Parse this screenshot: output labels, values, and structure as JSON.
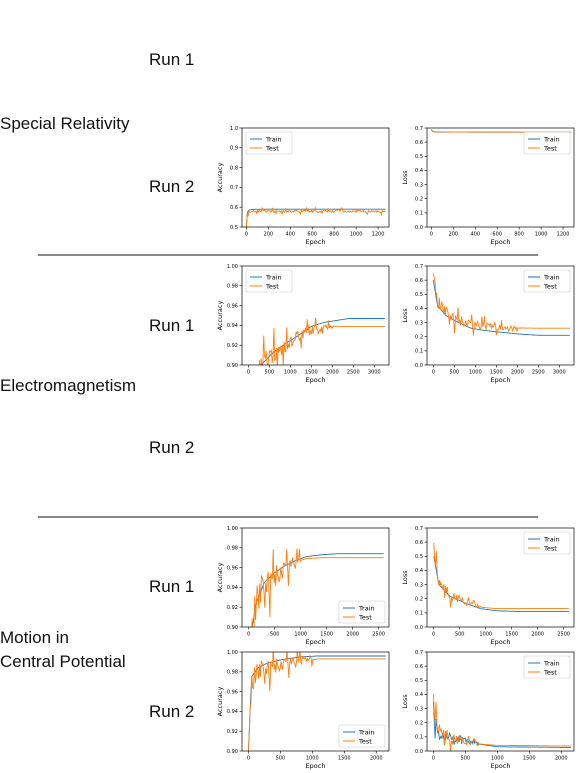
{
  "sections": [
    {
      "title_lines": [
        "Special Relativity"
      ],
      "runs": [
        "Run 1",
        "Run 2"
      ]
    },
    {
      "title_lines": [
        "Electromagnetism"
      ],
      "runs": [
        "Run 1",
        "Run 2"
      ]
    },
    {
      "title_lines": [
        "Motion in",
        "Central Potential"
      ],
      "runs": [
        "Run 1",
        "Run 2"
      ]
    }
  ],
  "colors": {
    "train": "#1f77b4",
    "test": "#ff7f0e",
    "separator": "#888888"
  },
  "chart_data": [
    {
      "id": "sr-run2-acc",
      "type": "line",
      "xlabel": "Epoch",
      "ylabel": "Accuracy",
      "xlim": [
        -40,
        1300
      ],
      "ylim": [
        0.5,
        1.0
      ],
      "xticks": [
        0,
        200,
        400,
        600,
        800,
        1000,
        1200
      ],
      "yticks": [
        0.5,
        0.6,
        0.7,
        0.8,
        0.9,
        1.0
      ],
      "legend": "top-left",
      "series": [
        {
          "name": "Train",
          "color": "#1f77b4",
          "x": [
            0,
            8,
            20,
            60,
            150,
            400,
            800,
            1270
          ],
          "y": [
            0.5,
            0.57,
            0.585,
            0.589,
            0.59,
            0.59,
            0.59,
            0.59
          ]
        },
        {
          "name": "Test",
          "color": "#ff7f0e",
          "noise": 0.006,
          "x": [
            0,
            8,
            20,
            60,
            150,
            400,
            800,
            1270
          ],
          "y": [
            0.5,
            0.56,
            0.575,
            0.58,
            0.58,
            0.58,
            0.58,
            0.58
          ]
        }
      ]
    },
    {
      "id": "sr-run2-loss",
      "type": "line",
      "xlabel": "Epoch",
      "ylabel": "Loss",
      "xlim": [
        -40,
        1300
      ],
      "ylim": [
        0.0,
        0.7
      ],
      "xticks": [
        0,
        200,
        400,
        600,
        800,
        1000,
        1200
      ],
      "yticks": [
        0.0,
        0.1,
        0.2,
        0.3,
        0.4,
        0.5,
        0.6,
        0.7
      ],
      "legend": "top-right",
      "series": [
        {
          "name": "Train",
          "color": "#1f77b4",
          "x": [
            0,
            10,
            50,
            200,
            600,
            1270
          ],
          "y": [
            0.69,
            0.675,
            0.672,
            0.671,
            0.67,
            0.67
          ]
        },
        {
          "name": "Test",
          "color": "#ff7f0e",
          "x": [
            0,
            10,
            50,
            200,
            600,
            1270
          ],
          "y": [
            0.69,
            0.676,
            0.673,
            0.672,
            0.671,
            0.671
          ]
        }
      ]
    },
    {
      "id": "em-run1-acc",
      "type": "line",
      "xlabel": "Epoch",
      "ylabel": "Accuracy",
      "xlim": [
        -150,
        3350
      ],
      "ylim": [
        0.9,
        1.0
      ],
      "xticks": [
        0,
        500,
        1000,
        1500,
        2000,
        2500,
        3000
      ],
      "yticks": [
        0.9,
        0.92,
        0.94,
        0.96,
        0.98,
        1.0
      ],
      "legend": "top-left",
      "series": [
        {
          "name": "Train",
          "color": "#1f77b4",
          "x": [
            0,
            300,
            600,
            900,
            1200,
            1500,
            1800,
            2100,
            2400,
            3250
          ],
          "y": [
            0.86,
            0.9,
            0.913,
            0.922,
            0.93,
            0.939,
            0.943,
            0.945,
            0.947,
            0.947
          ]
        },
        {
          "name": "Test",
          "color": "#ff7f0e",
          "noise": 0.012,
          "noiseUntil": 2000,
          "x": [
            0,
            300,
            600,
            900,
            1200,
            1500,
            1800,
            2000,
            3250
          ],
          "y": [
            0.86,
            0.9,
            0.912,
            0.92,
            0.93,
            0.935,
            0.938,
            0.939,
            0.939
          ]
        }
      ]
    },
    {
      "id": "em-run1-loss",
      "type": "line",
      "xlabel": "Epoch",
      "ylabel": "Loss",
      "xlim": [
        -150,
        3350
      ],
      "ylim": [
        0.0,
        0.7
      ],
      "xticks": [
        0,
        500,
        1000,
        1500,
        2000,
        2500,
        3000
      ],
      "yticks": [
        0.0,
        0.1,
        0.2,
        0.3,
        0.4,
        0.5,
        0.6,
        0.7
      ],
      "legend": "top-right",
      "series": [
        {
          "name": "Train",
          "color": "#1f77b4",
          "x": [
            0,
            100,
            300,
            600,
            900,
            1200,
            1500,
            2000,
            2500,
            3250
          ],
          "y": [
            0.6,
            0.42,
            0.35,
            0.3,
            0.26,
            0.245,
            0.235,
            0.22,
            0.21,
            0.21
          ]
        },
        {
          "name": "Test",
          "color": "#ff7f0e",
          "noise": 0.05,
          "noiseUntil": 2000,
          "x": [
            0,
            100,
            300,
            600,
            900,
            1200,
            1500,
            2000,
            2500,
            3250
          ],
          "y": [
            0.65,
            0.45,
            0.37,
            0.32,
            0.29,
            0.275,
            0.268,
            0.262,
            0.26,
            0.26
          ]
        }
      ]
    },
    {
      "id": "mcp-run1-acc",
      "type": "line",
      "xlabel": "Epoch",
      "ylabel": "Accuracy",
      "xlim": [
        -130,
        2700
      ],
      "ylim": [
        0.9,
        1.0
      ],
      "xticks": [
        0,
        500,
        1000,
        1500,
        2000,
        2500
      ],
      "yticks": [
        0.9,
        0.92,
        0.94,
        0.96,
        0.98,
        1.0
      ],
      "legend": "bottom-right",
      "series": [
        {
          "name": "Train",
          "color": "#1f77b4",
          "x": [
            0,
            150,
            300,
            500,
            700,
            900,
            1100,
            1400,
            1700,
            2600
          ],
          "y": [
            0.88,
            0.925,
            0.945,
            0.955,
            0.962,
            0.967,
            0.971,
            0.973,
            0.974,
            0.974
          ]
        },
        {
          "name": "Test",
          "color": "#ff7f0e",
          "noise": 0.02,
          "noiseUntil": 1000,
          "x": [
            0,
            150,
            300,
            500,
            700,
            900,
            1100,
            1400,
            1700,
            2600
          ],
          "y": [
            0.88,
            0.925,
            0.944,
            0.952,
            0.96,
            0.966,
            0.969,
            0.97,
            0.97,
            0.97
          ]
        }
      ]
    },
    {
      "id": "mcp-run1-loss",
      "type": "line",
      "xlabel": "Epoch",
      "ylabel": "Loss",
      "xlim": [
        -130,
        2700
      ],
      "ylim": [
        0.0,
        0.7
      ],
      "xticks": [
        0,
        500,
        1000,
        1500,
        2000,
        2500
      ],
      "yticks": [
        0.0,
        0.1,
        0.2,
        0.3,
        0.4,
        0.5,
        0.6,
        0.7
      ],
      "legend": "top-right",
      "series": [
        {
          "name": "Train",
          "color": "#1f77b4",
          "x": [
            0,
            100,
            300,
            600,
            900,
            1200,
            1600,
            2600
          ],
          "y": [
            0.5,
            0.3,
            0.22,
            0.17,
            0.13,
            0.115,
            0.11,
            0.11
          ]
        },
        {
          "name": "Test",
          "color": "#ff7f0e",
          "noise": 0.05,
          "noiseUntil": 900,
          "x": [
            0,
            100,
            300,
            600,
            900,
            1200,
            1600,
            2600
          ],
          "y": [
            0.55,
            0.32,
            0.23,
            0.18,
            0.14,
            0.13,
            0.13,
            0.13
          ]
        }
      ]
    },
    {
      "id": "mcp-run2-acc",
      "type": "line",
      "xlabel": "Epoch",
      "ylabel": "Accuracy",
      "xlim": [
        -100,
        2200
      ],
      "ylim": [
        0.9,
        1.0
      ],
      "xticks": [
        0,
        500,
        1000,
        1500,
        2000
      ],
      "yticks": [
        0.9,
        0.92,
        0.94,
        0.96,
        0.98,
        1.0
      ],
      "legend": "bottom-right",
      "series": [
        {
          "name": "Train",
          "color": "#1f77b4",
          "x": [
            0,
            50,
            150,
            300,
            500,
            800,
            1100,
            2150
          ],
          "y": [
            0.9,
            0.975,
            0.984,
            0.989,
            0.992,
            0.995,
            0.996,
            0.996
          ]
        },
        {
          "name": "Test",
          "color": "#ff7f0e",
          "noise": 0.012,
          "noiseUntil": 1000,
          "x": [
            0,
            50,
            150,
            300,
            500,
            800,
            1100,
            2150
          ],
          "y": [
            0.9,
            0.97,
            0.98,
            0.985,
            0.988,
            0.991,
            0.993,
            0.993
          ]
        }
      ]
    },
    {
      "id": "mcp-run2-loss",
      "type": "line",
      "xlabel": "Epoch",
      "ylabel": "Loss",
      "xlim": [
        -100,
        2200
      ],
      "ylim": [
        0.0,
        0.7
      ],
      "xticks": [
        0,
        500,
        1000,
        1500,
        2000
      ],
      "yticks": [
        0.0,
        0.1,
        0.2,
        0.3,
        0.4,
        0.5,
        0.6,
        0.7
      ],
      "legend": "top-right",
      "series": [
        {
          "name": "Train",
          "color": "#1f77b4",
          "noise": 0.05,
          "noiseUntil": 700,
          "x": [
            0,
            50,
            150,
            300,
            500,
            700,
            1000,
            2150
          ],
          "y": [
            0.3,
            0.15,
            0.1,
            0.09,
            0.08,
            0.05,
            0.03,
            0.025
          ]
        },
        {
          "name": "Test",
          "color": "#ff7f0e",
          "noise": 0.06,
          "noiseUntil": 700,
          "x": [
            0,
            50,
            150,
            300,
            500,
            700,
            1000,
            2150
          ],
          "y": [
            0.35,
            0.2,
            0.12,
            0.09,
            0.07,
            0.05,
            0.04,
            0.035
          ]
        }
      ]
    }
  ]
}
